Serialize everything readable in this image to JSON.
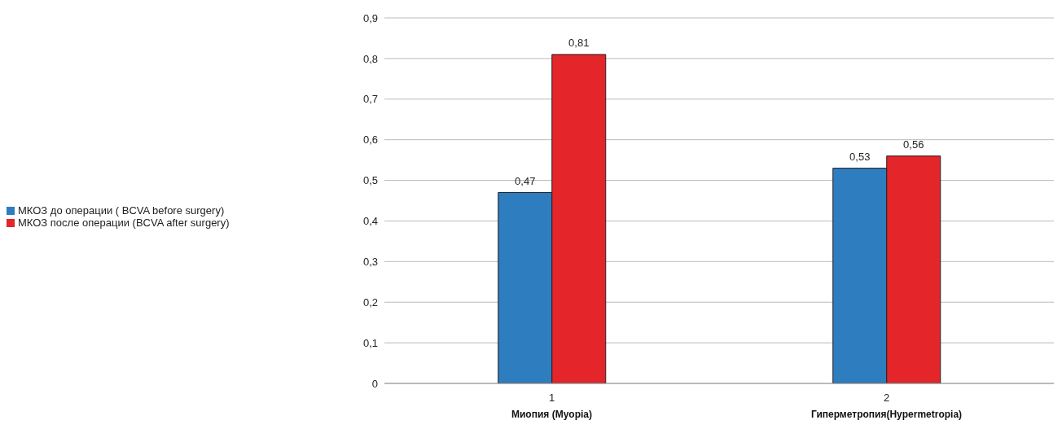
{
  "chart_data": {
    "type": "bar",
    "categories": [
      "1",
      "2"
    ],
    "series": [
      {
        "name": "МКОЗ до операции ( BCVA before surgery)",
        "color": "#2e7dbf",
        "values": [
          0.47,
          0.53
        ],
        "value_labels": [
          "0,47",
          "0,53"
        ]
      },
      {
        "name": "МКОЗ после операции (BCVA after surgery)",
        "color": "#e4252a",
        "values": [
          0.81,
          0.56
        ],
        "value_labels": [
          "0,81",
          "0,56"
        ]
      }
    ],
    "annotations": [
      "Миопия (Myopia)",
      "Гиперметропия(Hypermetropia)"
    ],
    "ylim": [
      0,
      0.9
    ],
    "yticks": [
      {
        "value": 0,
        "label": "0"
      },
      {
        "value": 0.1,
        "label": "0,1"
      },
      {
        "value": 0.2,
        "label": "0,2"
      },
      {
        "value": 0.3,
        "label": "0,3"
      },
      {
        "value": 0.4,
        "label": "0,4"
      },
      {
        "value": 0.5,
        "label": "0,5"
      },
      {
        "value": 0.6,
        "label": "0,6"
      },
      {
        "value": 0.7,
        "label": "0,7"
      },
      {
        "value": 0.8,
        "label": "0,8"
      },
      {
        "value": 0.9,
        "label": "0,9"
      }
    ],
    "grid": "y",
    "legend": "left"
  }
}
